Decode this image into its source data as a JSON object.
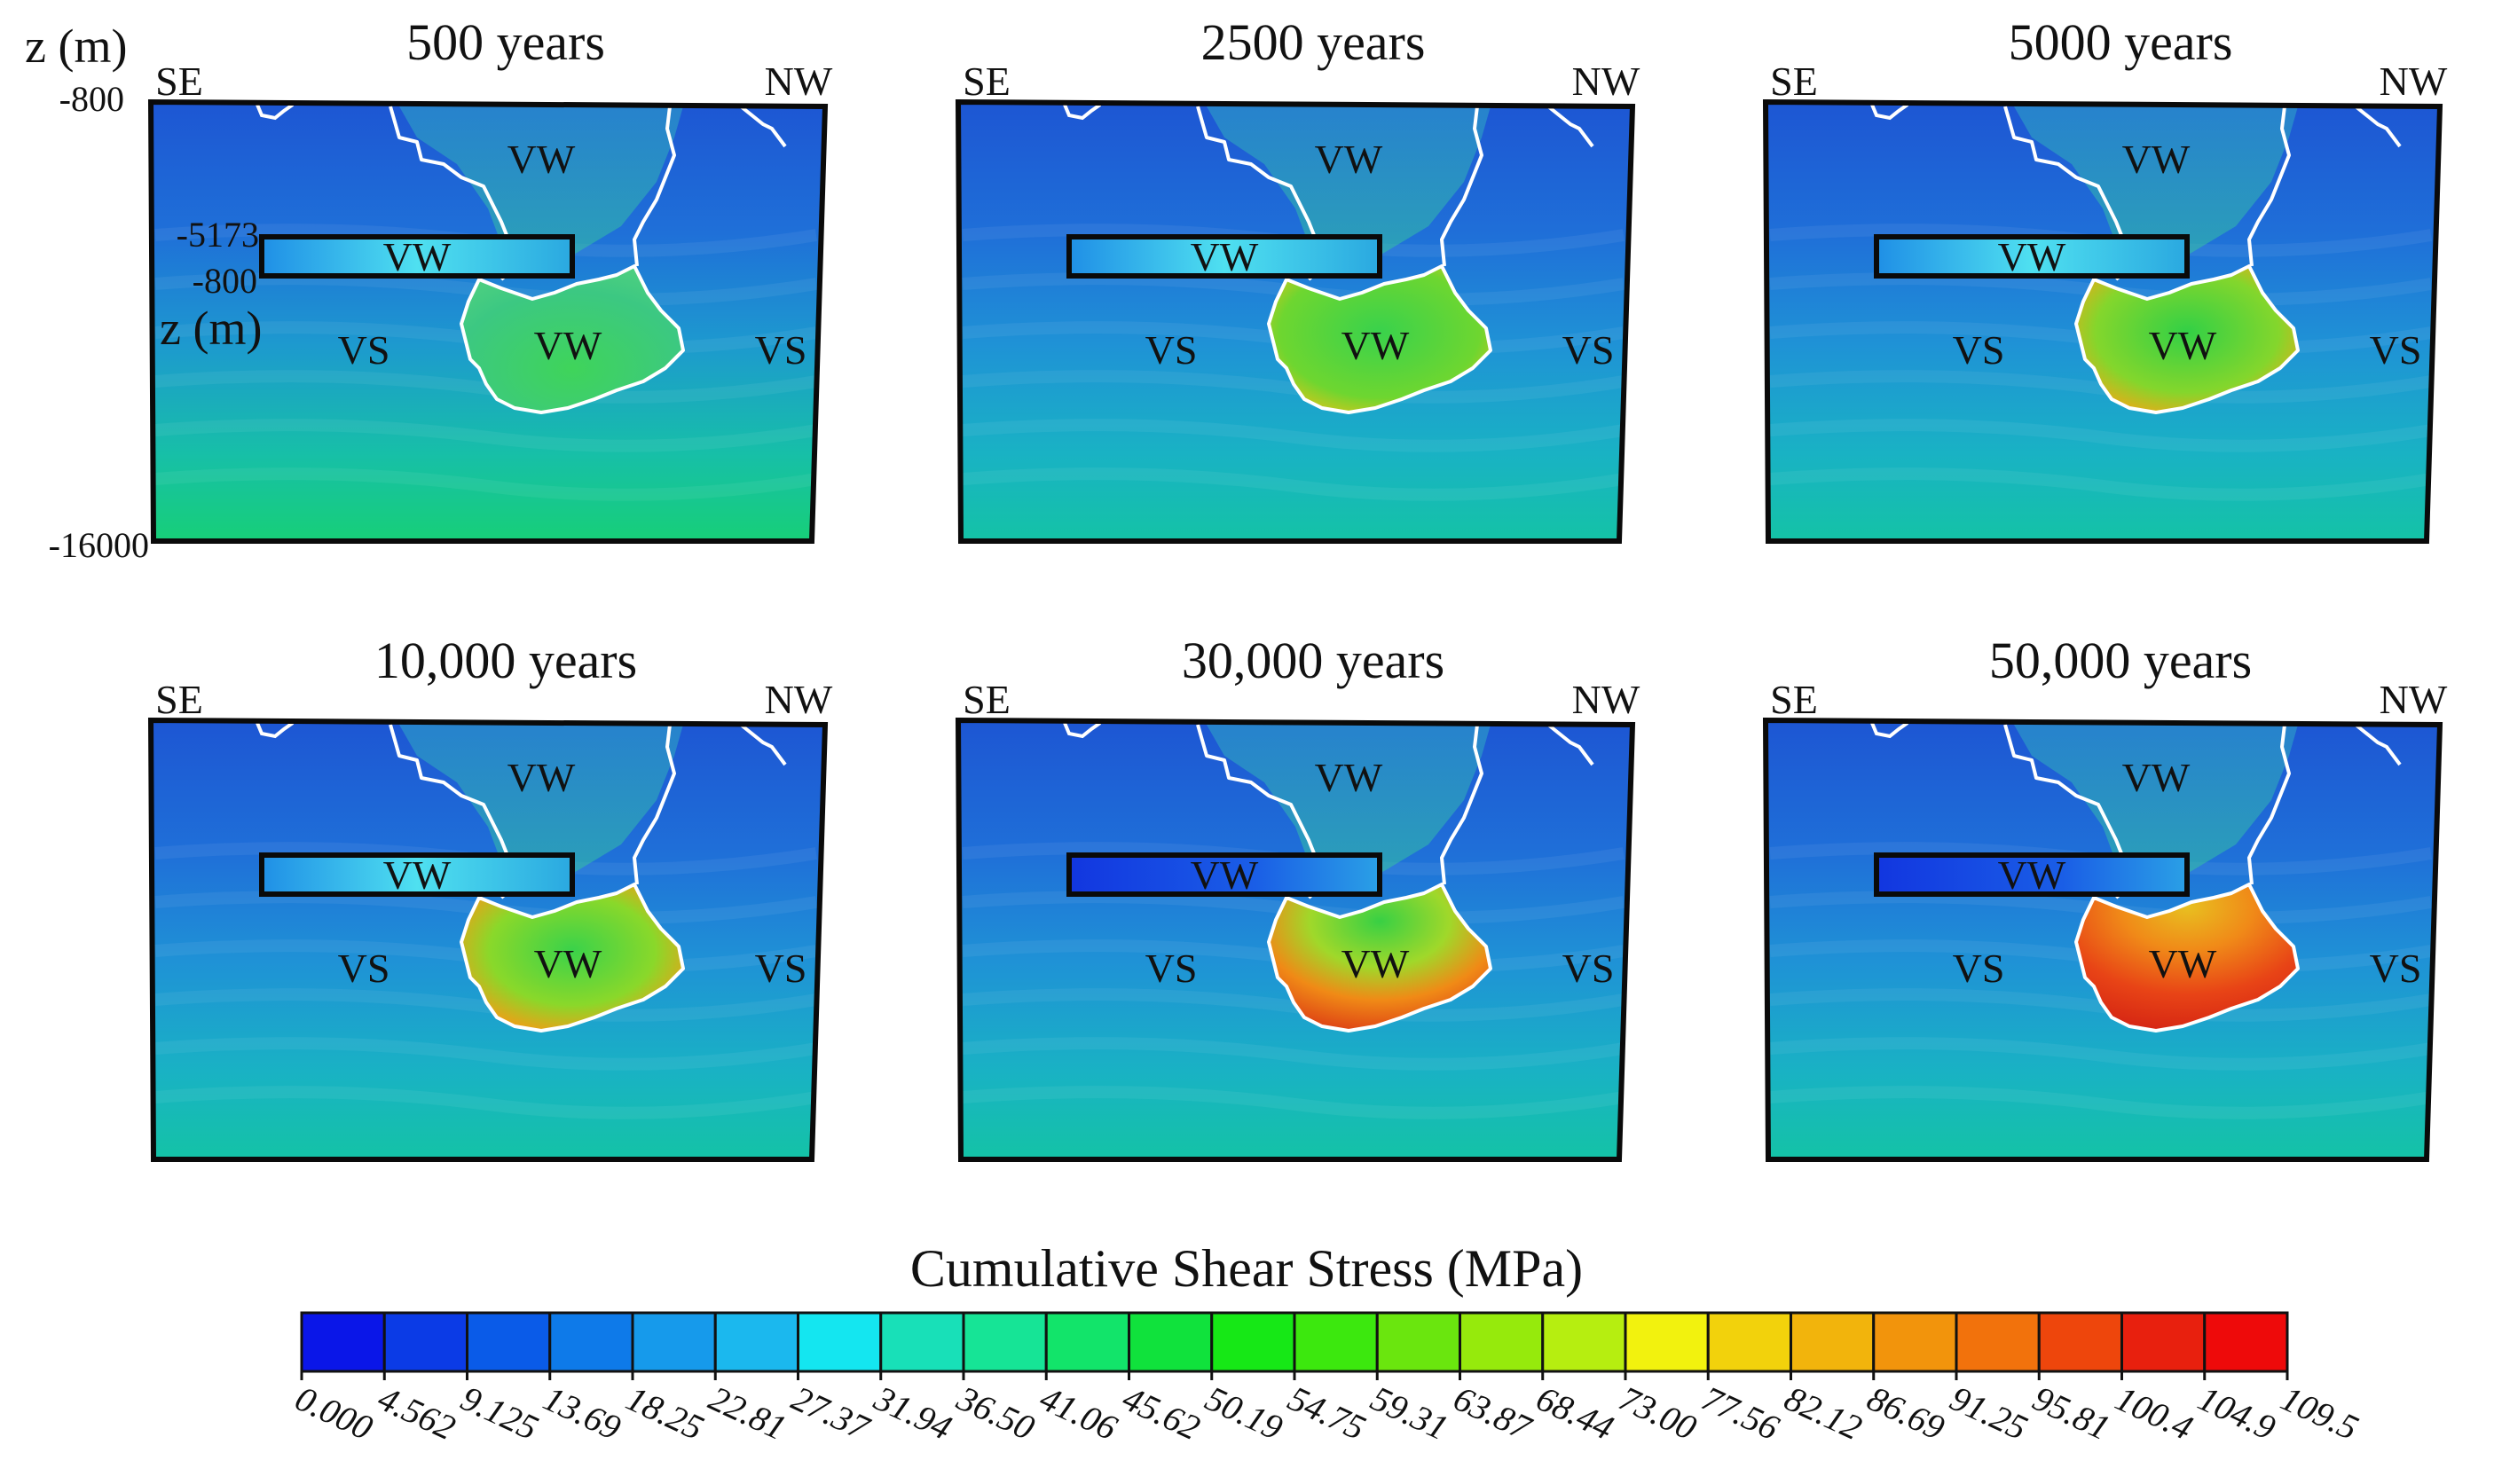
{
  "figure": {
    "axis_label": "z (m)",
    "depth_labels": {
      "top": "-800",
      "bottom": "-16000"
    },
    "inset_depth_labels": {
      "top": "-5173",
      "bottom": "-800",
      "label": "z (m)"
    },
    "direction_left": "SE",
    "direction_right": "NW",
    "zone_labels": {
      "upper": "VW",
      "inset": "VW",
      "lower": "VW",
      "left": "VS",
      "right": "VS"
    },
    "colors": {
      "background_blue": "#1e5fd6",
      "boundary": "#ffffff",
      "frame": "#0a0a0a"
    }
  },
  "panels": [
    {
      "title": "500 years",
      "lobe_intensity": 0.35,
      "inset_intensity": 0.45
    },
    {
      "title": "2500 years",
      "lobe_intensity": 0.55,
      "inset_intensity": 0.45
    },
    {
      "title": "5000 years",
      "lobe_intensity": 0.65,
      "inset_intensity": 0.4
    },
    {
      "title": "10,000 years",
      "lobe_intensity": 0.75,
      "inset_intensity": 0.4
    },
    {
      "title": "30,000 years",
      "lobe_intensity": 0.9,
      "inset_intensity": 0.2
    },
    {
      "title": "50,000 years",
      "lobe_intensity": 1.0,
      "inset_intensity": 0.1
    }
  ],
  "colorbar": {
    "title": "Cumulative Shear Stress (MPa)",
    "ticks": [
      "0.000",
      "4.562",
      "9.125",
      "13.69",
      "18.25",
      "22.81",
      "27.37",
      "31.94",
      "36.50",
      "41.06",
      "45.62",
      "50.19",
      "54.75",
      "59.31",
      "63.87",
      "68.44",
      "73.00",
      "77.56",
      "82.12",
      "86.69",
      "91.25",
      "95.81",
      "100.4",
      "104.9",
      "109.5"
    ],
    "colors": [
      "#0a16e8",
      "#0b3be6",
      "#0a5be8",
      "#0e7ae9",
      "#169aeb",
      "#1bb8ee",
      "#14e6f0",
      "#18e0b8",
      "#16e496",
      "#12e46a",
      "#10e23c",
      "#16e816",
      "#3ce80e",
      "#6ae60e",
      "#96ea0c",
      "#b6ee10",
      "#f2f20e",
      "#f2d20c",
      "#f2b40c",
      "#f2940c",
      "#f2720c",
      "#ee460c",
      "#e8200e",
      "#ee0a0a"
    ]
  }
}
